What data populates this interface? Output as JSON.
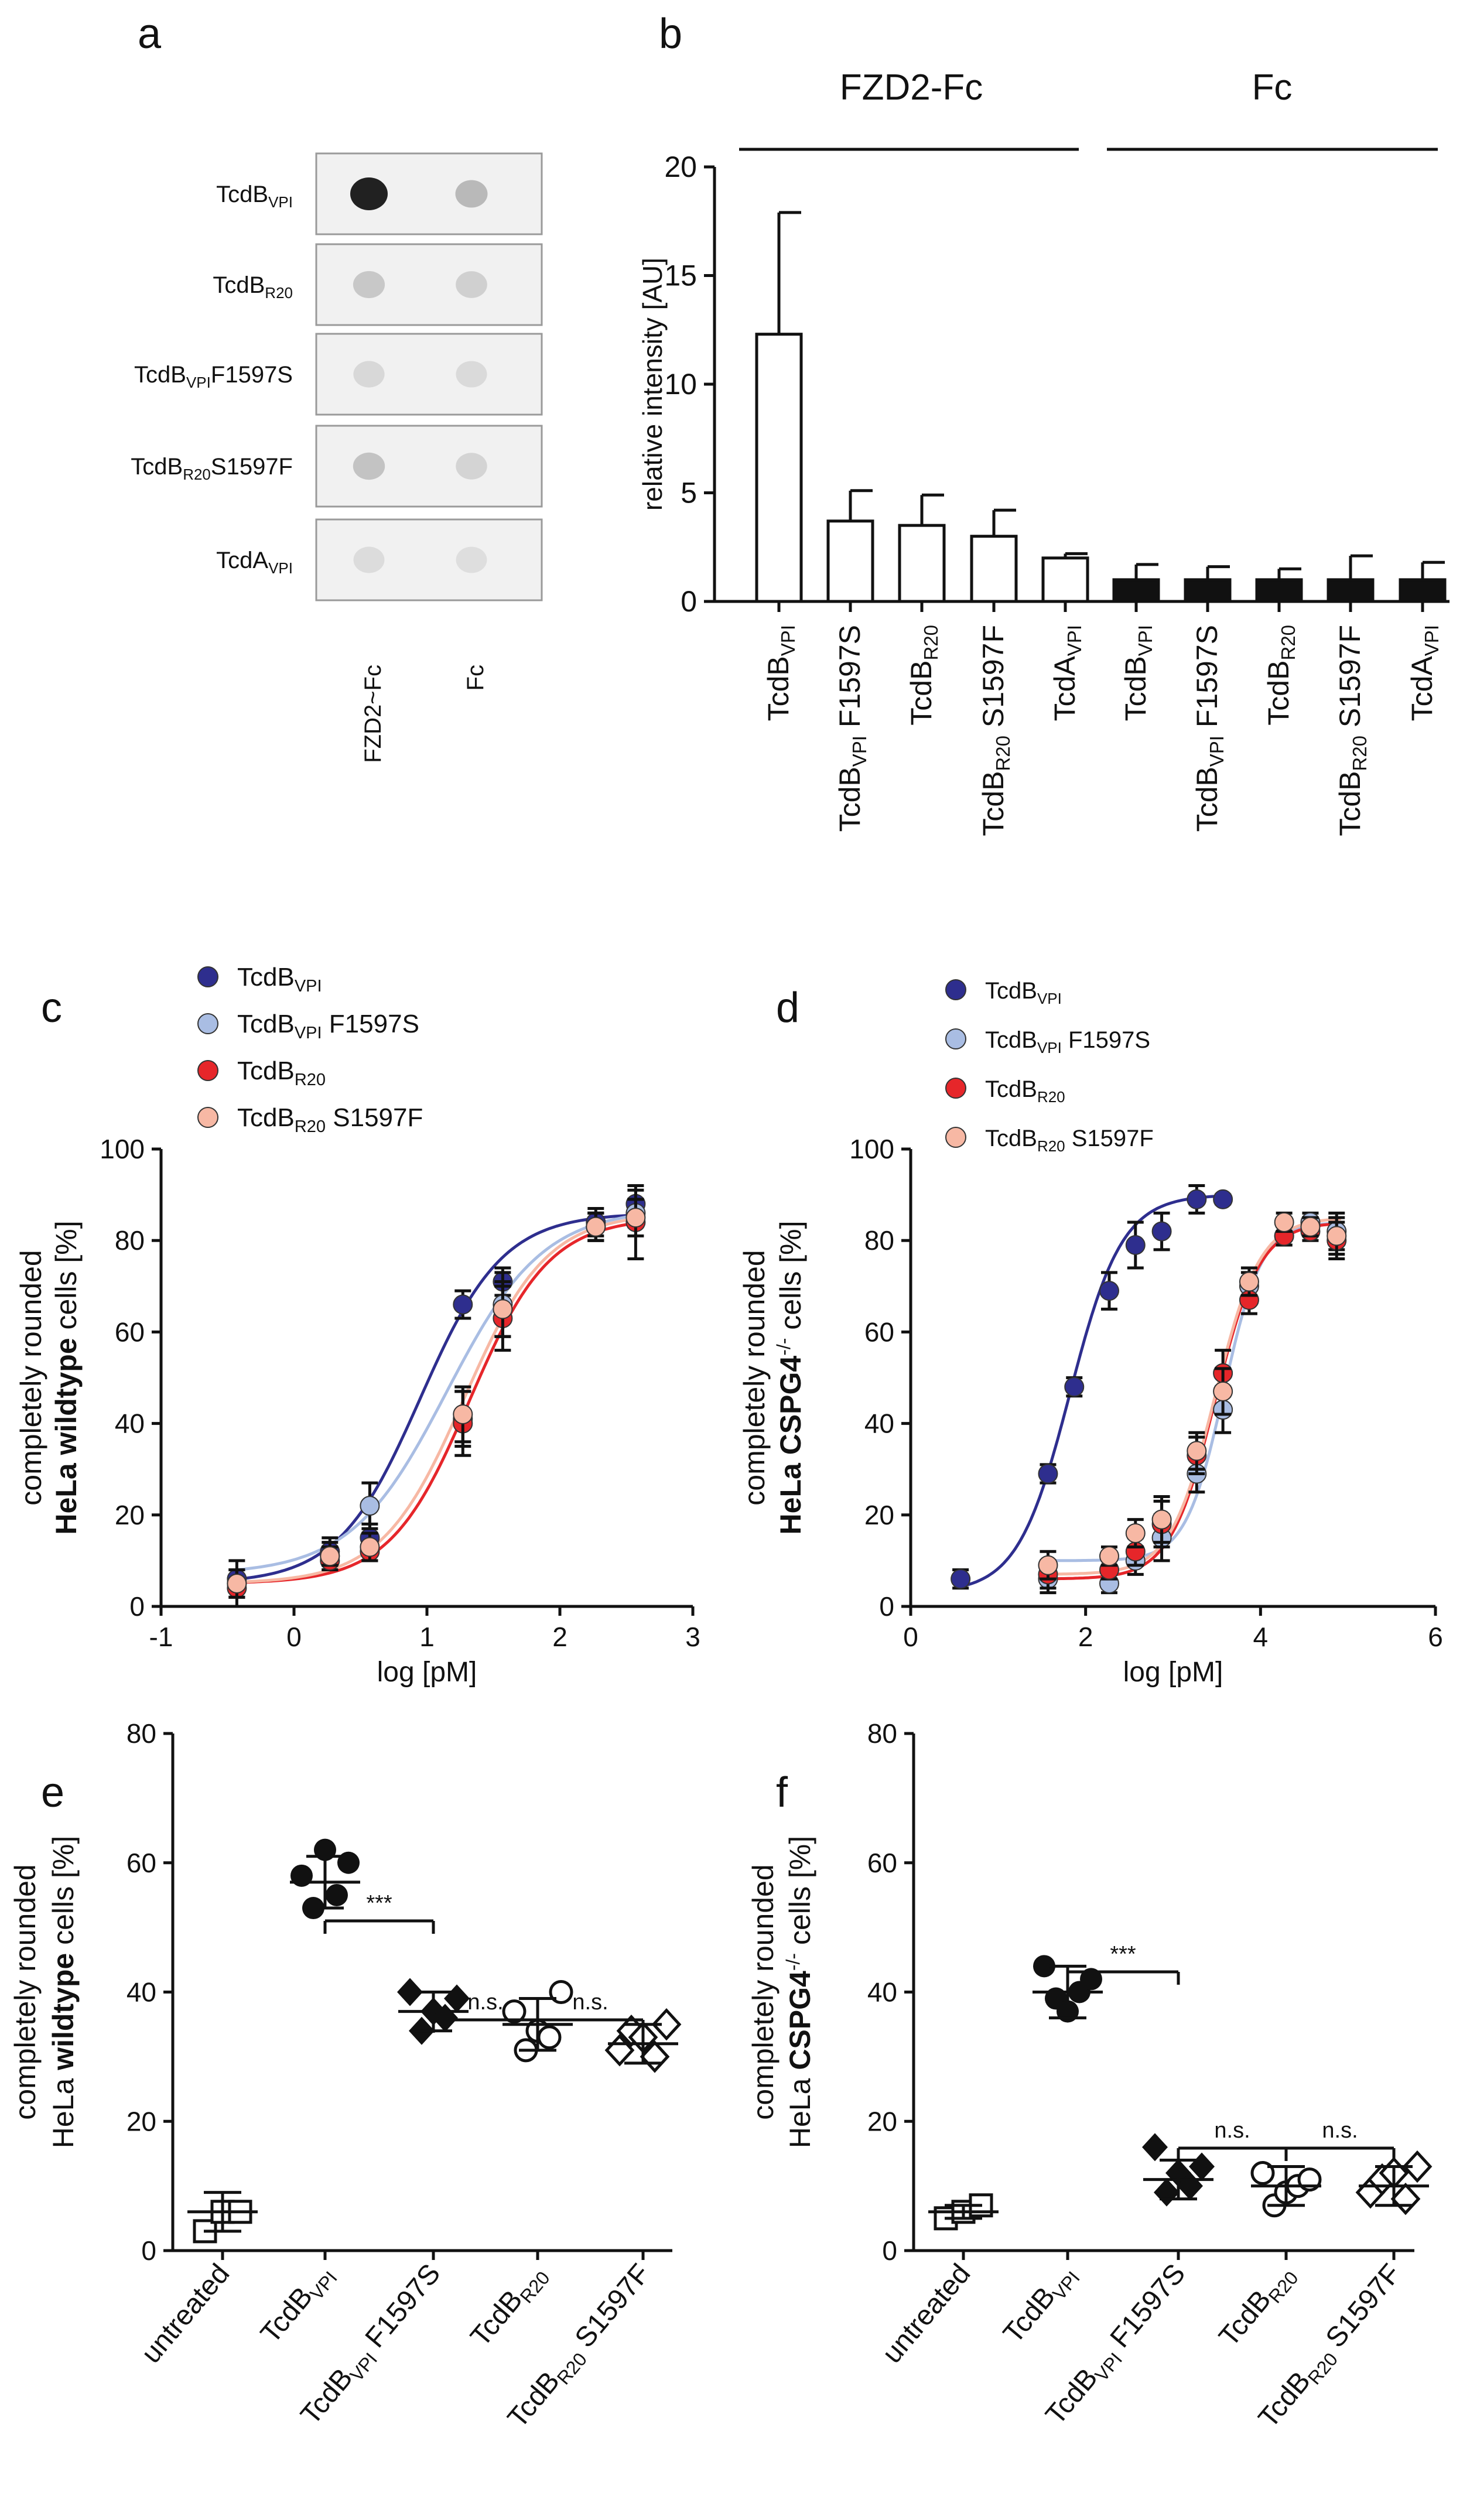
{
  "panels": {
    "a": {
      "letter": "a",
      "rows": [
        {
          "base": "TcdB",
          "sub": "VPI",
          "suffix": "",
          "intensity": [
            1.0,
            0.25
          ]
        },
        {
          "base": "TcdB",
          "sub": "R20",
          "suffix": "",
          "intensity": [
            0.18,
            0.14
          ]
        },
        {
          "base": "TcdB",
          "sub": "VPI",
          "suffix": "F1597S",
          "intensity": [
            0.1,
            0.09
          ]
        },
        {
          "base": "TcdB",
          "sub": "R20",
          "suffix": "S1597F",
          "intensity": [
            0.2,
            0.12
          ]
        },
        {
          "base": "TcdA",
          "sub": "VPI",
          "suffix": "",
          "intensity": [
            0.08,
            0.07
          ]
        }
      ],
      "columns": [
        "FZD2~Fc",
        "Fc"
      ]
    },
    "b": {
      "letter": "b",
      "group_labels": [
        "FZD2-Fc",
        "Fc"
      ],
      "ylabel": "relative intensity [AU]",
      "ylim": [
        0,
        20
      ],
      "yticks": [
        0,
        5,
        10,
        15,
        20
      ],
      "xtick_labels": [
        {
          "base": "TcdB",
          "sub": "VPI",
          "suffix": ""
        },
        {
          "base": "TcdB",
          "sub": "VPI",
          "suffix": " F1597S"
        },
        {
          "base": "TcdB",
          "sub": "R20",
          "suffix": ""
        },
        {
          "base": "TcdB",
          "sub": "R20",
          "suffix": " S1597F"
        },
        {
          "base": "TcdA",
          "sub": "VPI",
          "suffix": ""
        }
      ]
    },
    "c": {
      "letter": "c",
      "xlabel": "log [pM]",
      "ylabel_line1": "completely rounded",
      "ylabel_line2_bold": "HeLa wildtype",
      "ylabel_line2_rest": " cells [%]",
      "xticks": [
        -1,
        0,
        1,
        2,
        3
      ],
      "yticks": [
        0,
        20,
        40,
        60,
        80,
        100
      ]
    },
    "d": {
      "letter": "d",
      "xlabel": "log [pM]",
      "ylabel_line1": "completely rounded",
      "ylabel_line2_bold": "HeLa CSPG4",
      "ylabel_line2_sup": "-/-",
      "ylabel_line2_rest": " cells [%]",
      "xticks": [
        0,
        2,
        4,
        6
      ],
      "yticks": [
        0,
        20,
        40,
        60,
        80,
        100
      ]
    },
    "e": {
      "letter": "e",
      "ylabel_line1": "completely rounded",
      "ylabel_line2_pre": "HeLa ",
      "ylabel_line2_bold": "wildtype",
      "ylabel_line2_rest": " cells [%]",
      "yticks": [
        0,
        20,
        40,
        60,
        80
      ],
      "sig": [
        {
          "label": "***",
          "from": 1,
          "to": 2
        },
        {
          "label": "n.s.",
          "from": 2,
          "to": 3
        },
        {
          "label": "n.s.",
          "from": 3,
          "to": 4
        }
      ]
    },
    "f": {
      "letter": "f",
      "ylabel_line1": "completely rounded",
      "ylabel_line2_pre": "HeLa ",
      "ylabel_line2_bold": "CSPG4",
      "ylabel_line2_sup": "-/-",
      "ylabel_line2_rest": " cells [%]",
      "yticks": [
        0,
        20,
        40,
        60,
        80
      ],
      "sig": [
        {
          "label": "***",
          "from": 1,
          "to": 2
        },
        {
          "label": "n.s.",
          "from": 2,
          "to": 3
        },
        {
          "label": "n.s.",
          "from": 3,
          "to": 4
        }
      ]
    }
  },
  "legend": [
    {
      "base": "TcdB",
      "sub": "VPI",
      "suffix": "",
      "color": "#2e2e8e"
    },
    {
      "base": "TcdB",
      "sub": "VPI",
      "suffix": " F1597S",
      "color": "#a9bde3"
    },
    {
      "base": "TcdB",
      "sub": "R20",
      "suffix": "",
      "color": "#e6262a"
    },
    {
      "base": "TcdB",
      "sub": "R20",
      "suffix": " S1597F",
      "color": "#f7b8a4"
    }
  ],
  "scatter_categories": [
    {
      "base": "untreated",
      "sub": "",
      "suffix": ""
    },
    {
      "base": "TcdB",
      "sub": "VPI",
      "suffix": ""
    },
    {
      "base": "TcdB",
      "sub": "VPI",
      "suffix": " F1597S"
    },
    {
      "base": "TcdB",
      "sub": "R20",
      "suffix": ""
    },
    {
      "base": "TcdB",
      "sub": "R20",
      "suffix": " S1597F"
    }
  ],
  "chart_data": [
    {
      "panel": "b",
      "type": "bar",
      "title": "",
      "ylabel": "relative intensity [AU]",
      "ylim": [
        0,
        20
      ],
      "categories": [
        "TcdB VPI",
        "TcdB VPI F1597S",
        "TcdB R20",
        "TcdB R20 S1597F",
        "TcdA VPI"
      ],
      "series": [
        {
          "name": "FZD2-Fc",
          "values": [
            12.3,
            3.7,
            3.5,
            3.0,
            2.0
          ],
          "errors": [
            5.6,
            1.4,
            1.4,
            1.2,
            0.2
          ]
        },
        {
          "name": "Fc",
          "values": [
            1.0,
            1.0,
            1.0,
            1.0,
            1.0
          ],
          "errors": [
            0.7,
            0.6,
            0.5,
            1.1,
            0.8
          ]
        }
      ]
    },
    {
      "panel": "c",
      "type": "scatter",
      "xlabel": "log [pM]",
      "ylabel": "completely rounded HeLa wildtype cells [%]",
      "xlim": [
        -1,
        3
      ],
      "ylim": [
        0,
        100
      ],
      "series": [
        {
          "name": "TcdB VPI",
          "x": [
            -0.43,
            0.27,
            0.57,
            1.27,
            1.57,
            2.27,
            2.57
          ],
          "y": [
            6,
            12,
            15,
            66,
            71,
            84,
            88
          ],
          "err": [
            4,
            3,
            3,
            3,
            3,
            3,
            3
          ],
          "fit": {
            "bottom": 5,
            "top": 86,
            "logec50": 0.95,
            "hill": 1.4
          }
        },
        {
          "name": "TcdB VPI F1597S",
          "x": [
            -0.43,
            0.27,
            0.57,
            1.27,
            1.57,
            2.27,
            2.57
          ],
          "y": [
            5,
            11,
            22,
            41,
            66,
            83,
            86
          ],
          "err": [
            3,
            3,
            5,
            6,
            7,
            3,
            3
          ],
          "fit": {
            "bottom": 7,
            "top": 87,
            "logec50": 1.15,
            "hill": 1.2
          }
        },
        {
          "name": "TcdB R20",
          "x": [
            -0.43,
            0.27,
            0.57,
            1.27,
            1.57,
            2.27,
            2.57
          ],
          "y": [
            4,
            10,
            12,
            40,
            63,
            83,
            84
          ],
          "err": [
            4,
            2,
            2,
            7,
            7,
            3,
            8
          ],
          "fit": {
            "bottom": 5,
            "top": 85,
            "logec50": 1.32,
            "hill": 1.45
          }
        },
        {
          "name": "TcdB R20 S1597F",
          "x": [
            -0.43,
            0.27,
            0.57,
            1.27,
            1.57,
            2.27,
            2.57
          ],
          "y": [
            5,
            11,
            13,
            42,
            65,
            83,
            85
          ],
          "err": [
            3,
            2,
            3,
            6,
            6,
            3,
            4
          ],
          "fit": {
            "bottom": 5,
            "top": 86,
            "logec50": 1.28,
            "hill": 1.4
          }
        }
      ]
    },
    {
      "panel": "d",
      "type": "scatter",
      "xlabel": "log [pM]",
      "ylabel": "completely rounded HeLa CSPG4-/- cells [%]",
      "xlim": [
        0,
        6
      ],
      "ylim": [
        0,
        100
      ],
      "series": [
        {
          "name": "TcdB VPI",
          "x": [
            0.57,
            1.57,
            1.87,
            2.27,
            2.57,
            2.87,
            3.27,
            3.57
          ],
          "y": [
            6,
            29,
            48,
            69,
            79,
            82,
            89,
            89
          ],
          "err": [
            2,
            2,
            2,
            4,
            5,
            4,
            3,
            1
          ],
          "fit": {
            "bottom": 3,
            "top": 90,
            "logec50": 1.82,
            "hill": 1.45
          }
        },
        {
          "name": "TcdB VPI F1597S",
          "x": [
            1.57,
            2.27,
            2.57,
            2.87,
            3.27,
            3.57,
            3.87,
            4.27,
            4.57,
            4.87
          ],
          "y": [
            6,
            5,
            10,
            15,
            29,
            43,
            70,
            81,
            84,
            82
          ],
          "err": [
            3,
            2,
            3,
            5,
            4,
            5,
            3,
            2,
            2,
            4
          ],
          "fit": {
            "bottom": 10,
            "top": 84,
            "logec50": 3.58,
            "hill": 2.0
          }
        },
        {
          "name": "TcdB R20",
          "x": [
            1.57,
            2.27,
            2.57,
            2.87,
            3.27,
            3.57,
            3.87,
            4.27,
            4.57,
            4.87
          ],
          "y": [
            7,
            8,
            12,
            18,
            33,
            51,
            67,
            81,
            82,
            80
          ],
          "err": [
            3,
            2,
            3,
            5,
            4,
            5,
            3,
            2,
            2,
            4
          ],
          "fit": {
            "bottom": 6,
            "top": 84,
            "logec50": 3.48,
            "hill": 1.7
          }
        },
        {
          "name": "TcdB R20 S1597F",
          "x": [
            1.57,
            2.27,
            2.57,
            2.87,
            3.27,
            3.57,
            3.87,
            4.27,
            4.57,
            4.87
          ],
          "y": [
            9,
            11,
            16,
            19,
            34,
            47,
            71,
            84,
            83,
            81
          ],
          "err": [
            3,
            2,
            3,
            5,
            4,
            5,
            3,
            2,
            2,
            4
          ],
          "fit": {
            "bottom": 7,
            "top": 85,
            "logec50": 3.48,
            "hill": 1.7
          }
        }
      ]
    },
    {
      "panel": "e",
      "type": "scatter",
      "ylabel": "completely rounded HeLa wildtype cells [%]",
      "ylim": [
        0,
        80
      ],
      "categories": [
        "untreated",
        "TcdB VPI",
        "TcdB VPI F1597S",
        "TcdB R20",
        "TcdB R20 S1597F"
      ],
      "series": [
        {
          "name": "untreated",
          "marker": "open-square",
          "points": [
            3,
            6,
            6
          ],
          "mean": 6,
          "sd": 3
        },
        {
          "name": "TcdB VPI",
          "marker": "filled-circle",
          "points": [
            58,
            53,
            62,
            55,
            60
          ],
          "mean": 57,
          "sd": 4
        },
        {
          "name": "TcdB VPI F1597S",
          "marker": "filled-diamond",
          "points": [
            40,
            34,
            37,
            36,
            39
          ],
          "mean": 37,
          "sd": 3
        },
        {
          "name": "TcdB R20",
          "marker": "open-circle",
          "points": [
            37,
            31,
            34,
            33,
            40
          ],
          "mean": 35,
          "sd": 4
        },
        {
          "name": "TcdB R20 S1597F",
          "marker": "open-diamond",
          "points": [
            31,
            34,
            33,
            30,
            35
          ],
          "mean": 32,
          "sd": 3
        }
      ]
    },
    {
      "panel": "f",
      "type": "scatter",
      "ylabel": "completely rounded HeLa CSPG4-/- cells [%]",
      "ylim": [
        0,
        80
      ],
      "categories": [
        "untreated",
        "TcdB VPI",
        "TcdB VPI F1597S",
        "TcdB R20",
        "TcdB R20 S1597F"
      ],
      "series": [
        {
          "name": "untreated",
          "marker": "open-square",
          "points": [
            5,
            6,
            7
          ],
          "mean": 6,
          "sd": 1
        },
        {
          "name": "TcdB VPI",
          "marker": "filled-circle",
          "points": [
            44,
            39,
            37,
            40,
            42
          ],
          "mean": 40,
          "sd": 4
        },
        {
          "name": "TcdB VPI F1597S",
          "marker": "filled-diamond",
          "points": [
            16,
            9,
            12,
            10,
            13
          ],
          "mean": 11,
          "sd": 3
        },
        {
          "name": "TcdB R20",
          "marker": "open-circle",
          "points": [
            12,
            7,
            9,
            10,
            11
          ],
          "mean": 10,
          "sd": 3
        },
        {
          "name": "TcdB R20 S1597F",
          "marker": "open-diamond",
          "points": [
            9,
            11,
            12,
            8,
            13
          ],
          "mean": 10,
          "sd": 3
        }
      ]
    }
  ]
}
